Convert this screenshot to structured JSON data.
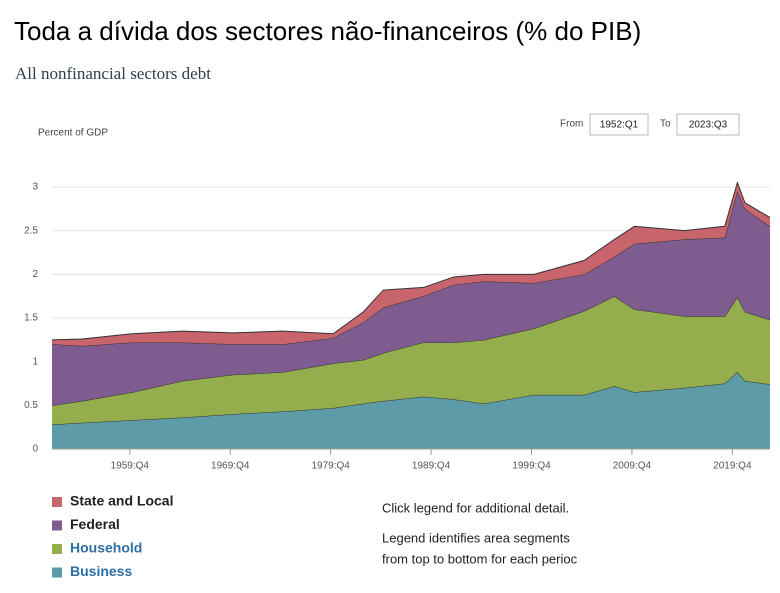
{
  "chart_data": {
    "type": "stacked_area",
    "title": "Toda a dívida dos sectores não-financeiros (% do PIB)",
    "subtitle": "All nonfinancial sectors debt",
    "y_label": "Percent of GDP",
    "from_label": "From",
    "from_value": "1952:Q1",
    "to_label": "To",
    "to_value": "2023:Q3",
    "notes": [
      "Click legend for additional detail.",
      "Legend identifies area segments",
      "from top to bottom for each perioc"
    ],
    "x": [
      1952,
      1955,
      1960,
      1965,
      1970,
      1975,
      1980,
      1983,
      1985,
      1989,
      1992,
      1995,
      2000,
      2005,
      2008,
      2010,
      2015,
      2019,
      2020.25,
      2021,
      2023.5
    ],
    "series": [
      {
        "name": "State and Local",
        "color": "#c8646c",
        "values": [
          0.05,
          0.08,
          0.1,
          0.13,
          0.13,
          0.15,
          0.05,
          0.12,
          0.2,
          0.1,
          0.09,
          0.08,
          0.1,
          0.16,
          0.2,
          0.2,
          0.1,
          0.13,
          0.1,
          0.07,
          0.1
        ]
      },
      {
        "name": "Federal",
        "color": "#7e5c8f",
        "values": [
          0.7,
          0.63,
          0.57,
          0.44,
          0.35,
          0.32,
          0.29,
          0.43,
          0.52,
          0.53,
          0.66,
          0.67,
          0.52,
          0.42,
          0.45,
          0.75,
          0.88,
          0.9,
          1.21,
          1.18,
          1.07
        ]
      },
      {
        "name": "Household",
        "color": "#94ad4d",
        "values": [
          0.22,
          0.25,
          0.32,
          0.42,
          0.45,
          0.45,
          0.51,
          0.5,
          0.55,
          0.62,
          0.65,
          0.73,
          0.76,
          0.96,
          1.03,
          0.95,
          0.82,
          0.77,
          0.86,
          0.79,
          0.74
        ]
      },
      {
        "name": "Business",
        "color": "#5d9ba9",
        "values": [
          0.28,
          0.3,
          0.33,
          0.36,
          0.4,
          0.43,
          0.47,
          0.52,
          0.55,
          0.6,
          0.57,
          0.52,
          0.62,
          0.62,
          0.72,
          0.65,
          0.7,
          0.75,
          0.88,
          0.78,
          0.74
        ]
      }
    ],
    "xlim": [
      1952,
      2023.5
    ],
    "xticks": [
      {
        "value": 1959.75,
        "label": "1959:Q4"
      },
      {
        "value": 1969.75,
        "label": "1969:Q4"
      },
      {
        "value": 1979.75,
        "label": "1979:Q4"
      },
      {
        "value": 1989.75,
        "label": "1989:Q4"
      },
      {
        "value": 1999.75,
        "label": "1999:Q4"
      },
      {
        "value": 2009.75,
        "label": "2009:Q4"
      },
      {
        "value": 2019.75,
        "label": "2019:Q4"
      }
    ],
    "ylim": [
      0,
      3
    ],
    "yticks": [
      0,
      0.5,
      1,
      1.5,
      2,
      2.5,
      3
    ],
    "grid": true
  }
}
